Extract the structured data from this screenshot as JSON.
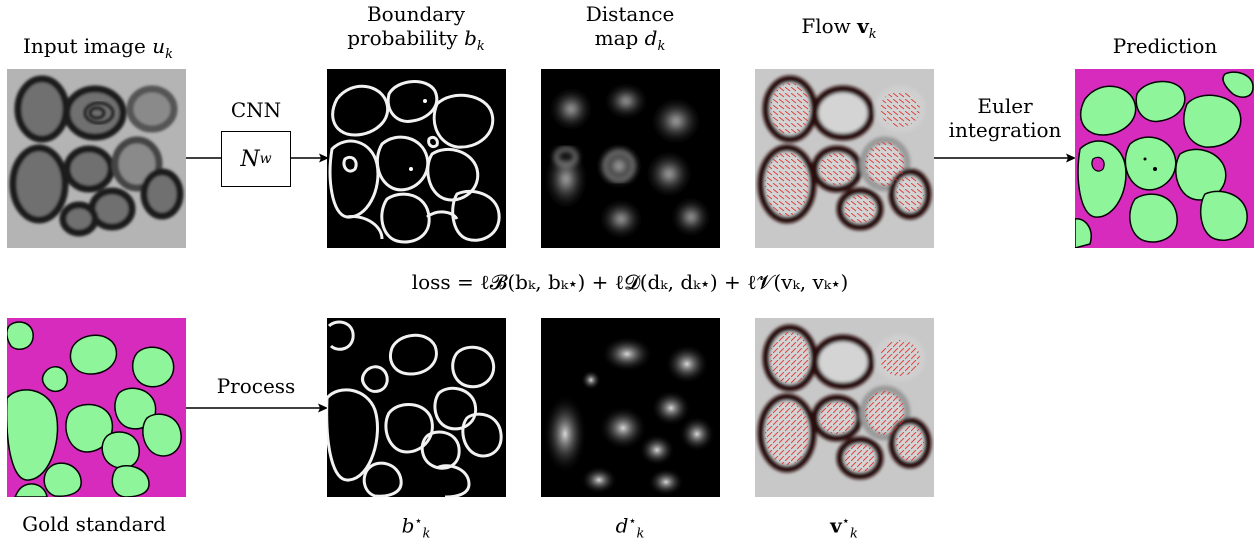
{
  "labels": {
    "input_title": "Input image",
    "input_sym": "u",
    "input_sub": "k",
    "boundary_line1": "Boundary",
    "boundary_line2": "probability",
    "boundary_sym": "b",
    "boundary_sub": "k",
    "distance_line1": "Distance",
    "distance_line2": "map",
    "distance_sym": "d",
    "distance_sub": "k",
    "flow_title": "Flow",
    "flow_sym": "v",
    "flow_sub": "k",
    "prediction": "Prediction",
    "cnn": "CNN",
    "net_sym": "N",
    "net_sub": "w",
    "euler_line1": "Euler",
    "euler_line2": "integration",
    "loss": "loss = ℓ𝓑(bₖ, bₖ⋆) + ℓ𝓓(dₖ, dₖ⋆) + ℓ𝓥(vₖ, vₖ⋆)",
    "process": "Process",
    "gold": "Gold standard",
    "bstar_sym": "b",
    "dstar_sym": "d",
    "vstar_sym": "v",
    "star_sub": "k",
    "star_sup": "⋆"
  },
  "colors": {
    "magenta": "#d62bbd",
    "cell_green": "#8ff59a",
    "flow_red": "#e0201c",
    "em_gray": "#b8b8b8"
  }
}
